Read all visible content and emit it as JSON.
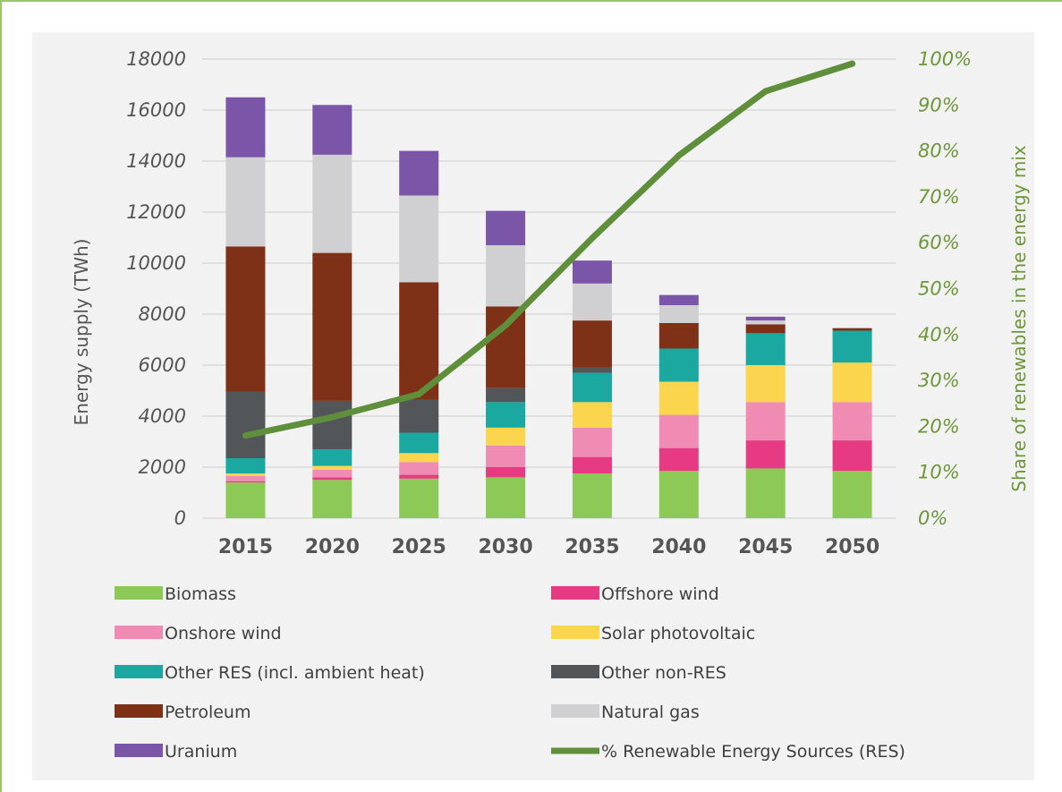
{
  "chart_data": {
    "type": "bar",
    "stacked": true,
    "title": "",
    "categories": [
      "2015",
      "2020",
      "2025",
      "2030",
      "2035",
      "2040",
      "2045",
      "2050"
    ],
    "ylabel": "Energy supply (TWh)",
    "ylim": [
      0,
      18000
    ],
    "yticks": [
      "0",
      "2000",
      "4000",
      "6000",
      "8000",
      "10000",
      "12000",
      "14000",
      "16000",
      "18000"
    ],
    "y2label": "Share of renewables in the energy mix",
    "y2lim": [
      0,
      100
    ],
    "y2ticks": [
      "0%",
      "10%",
      "20%",
      "30%",
      "40%",
      "50%",
      "60%",
      "70%",
      "80%",
      "90%",
      "100%"
    ],
    "grid": true,
    "legend_position": "bottom",
    "series": [
      {
        "name": "Biomass",
        "color": "#8dc956",
        "values": [
          1400,
          1500,
          1550,
          1600,
          1750,
          1850,
          1950,
          1850
        ]
      },
      {
        "name": "Offshore wind",
        "color": "#e63b83",
        "values": [
          50,
          100,
          150,
          400,
          650,
          900,
          1100,
          1200
        ]
      },
      {
        "name": "Onshore wind",
        "color": "#f08cb4",
        "values": [
          200,
          300,
          500,
          850,
          1150,
          1300,
          1500,
          1500
        ]
      },
      {
        "name": "Solar photovoltaic",
        "color": "#fcd54e",
        "values": [
          100,
          150,
          350,
          700,
          1000,
          1300,
          1450,
          1550
        ]
      },
      {
        "name": "Other RES (incl. ambient heat)",
        "color": "#1aa8a0",
        "values": [
          600,
          650,
          800,
          1000,
          1150,
          1300,
          1250,
          1250
        ]
      },
      {
        "name": "Other non-RES",
        "color": "#525658",
        "values": [
          2600,
          1900,
          1300,
          550,
          200,
          0,
          0,
          0
        ]
      },
      {
        "name": "Petroleum",
        "color": "#7e3116",
        "values": [
          5700,
          5800,
          4600,
          3200,
          1850,
          1000,
          350,
          100
        ]
      },
      {
        "name": "Natural gas",
        "color": "#d0d0d2",
        "values": [
          3500,
          3850,
          3400,
          2400,
          1450,
          700,
          150,
          0
        ]
      },
      {
        "name": "Uranium",
        "color": "#7b56a8",
        "values": [
          2350,
          1950,
          1750,
          1350,
          900,
          400,
          150,
          0
        ]
      }
    ],
    "line_series": {
      "name": "% Renewable Energy Sources (RES)",
      "color": "#5f8f3a",
      "axis": "y2",
      "values": [
        18,
        22,
        27,
        42,
        61,
        79,
        93,
        99
      ]
    }
  }
}
